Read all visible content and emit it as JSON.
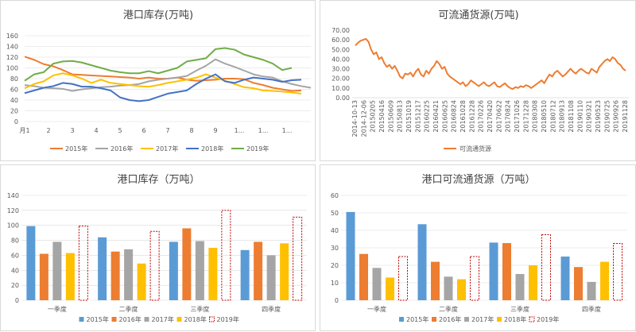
{
  "colors": {
    "y2015": "#ed7d31",
    "y2016": "#a5a5a5",
    "y2017": "#ffc000",
    "y2018": "#4472c4",
    "y2019": "#70ad47",
    "bar2015": "#5b9bd5",
    "bar2016": "#ed7d31",
    "bar2017": "#a5a5a5",
    "bar2018": "#ffc000",
    "bar2019": "#c00000",
    "flow": "#ed7d31",
    "grid": "#d9d9d9"
  },
  "chart_data": [
    {
      "type": "line",
      "title": "港口库存(万吨)",
      "yticks": [
        "0",
        "20",
        "40",
        "60",
        "80",
        "100",
        "120",
        "140",
        "160"
      ],
      "ylim": [
        0,
        160
      ],
      "xticks": [
        "月1",
        "2",
        "3",
        "4",
        "5",
        "6",
        "7",
        "8",
        "9",
        "1...",
        "1...",
        "1..."
      ],
      "xtick_positions": [
        1,
        2,
        3,
        4,
        5,
        6,
        7,
        8,
        9,
        10,
        11,
        12
      ],
      "xlim": [
        1,
        13
      ],
      "grid": true,
      "legend_position": "bottom",
      "series": [
        {
          "name": "2015年",
          "color_key": "y2015",
          "x": [
            1,
            1.4,
            1.8,
            2.2,
            2.6,
            3,
            3.4,
            3.8,
            4.2,
            4.6,
            5,
            5.4,
            5.8,
            6.2,
            6.6,
            7,
            7.4,
            7.8,
            8.2,
            8.6,
            9,
            9.4,
            9.8,
            10.2,
            10.6,
            11,
            11.4,
            11.8,
            12.2,
            12.6
          ],
          "values": [
            121,
            115,
            107,
            103,
            96,
            88,
            87,
            86,
            85,
            84,
            83,
            82,
            80,
            82,
            80,
            80,
            82,
            78,
            76,
            77,
            78,
            80,
            80,
            79,
            72,
            68,
            63,
            60,
            57,
            58
          ]
        },
        {
          "name": "2016年",
          "color_key": "y2016",
          "x": [
            1,
            1.4,
            1.8,
            2.2,
            2.6,
            3,
            3.4,
            3.8,
            4.2,
            4.6,
            5,
            5.4,
            5.8,
            6.2,
            6.6,
            7,
            7.4,
            7.8,
            8.2,
            8.6,
            9,
            9.4,
            9.8,
            10.2,
            10.6,
            11,
            11.4,
            11.8,
            12.2,
            12.6,
            13
          ],
          "values": [
            68,
            66,
            63,
            62,
            61,
            57,
            60,
            62,
            64,
            65,
            67,
            68,
            70,
            75,
            78,
            80,
            82,
            85,
            95,
            104,
            116,
            108,
            102,
            95,
            88,
            84,
            82,
            75,
            70,
            66,
            63
          ]
        },
        {
          "name": "2017年",
          "color_key": "y2017",
          "x": [
            1,
            1.4,
            1.8,
            2.2,
            2.6,
            3,
            3.4,
            3.8,
            4.2,
            4.6,
            5,
            5.4,
            5.8,
            6.2,
            6.6,
            7,
            7.4,
            7.8,
            8.2,
            8.6,
            9,
            9.4,
            9.8,
            10.2,
            10.6,
            11,
            11.4,
            11.8,
            12.2,
            12.6
          ],
          "values": [
            62,
            70,
            75,
            86,
            90,
            86,
            80,
            72,
            78,
            72,
            70,
            68,
            66,
            65,
            68,
            72,
            75,
            78,
            82,
            88,
            82,
            76,
            70,
            64,
            62,
            58,
            57,
            56,
            54,
            52
          ]
        },
        {
          "name": "2018年",
          "color_key": "y2018",
          "x": [
            1,
            1.4,
            1.8,
            2.2,
            2.6,
            3,
            3.4,
            3.8,
            4.2,
            4.6,
            5,
            5.4,
            5.8,
            6.2,
            6.6,
            7,
            7.4,
            7.8,
            8.2,
            8.6,
            9,
            9.4,
            9.8,
            10.2,
            10.6,
            11,
            11.4,
            11.8,
            12.2,
            12.6
          ],
          "values": [
            53,
            58,
            63,
            66,
            72,
            70,
            65,
            65,
            62,
            58,
            45,
            40,
            38,
            40,
            46,
            52,
            55,
            58,
            70,
            80,
            88,
            75,
            72,
            78,
            82,
            80,
            78,
            74,
            77,
            78
          ]
        },
        {
          "name": "2019年",
          "color_key": "y2019",
          "x": [
            1,
            1.4,
            1.8,
            2.2,
            2.6,
            3,
            3.4,
            3.8,
            4.2,
            4.6,
            5,
            5.4,
            5.8,
            6.2,
            6.6,
            7,
            7.4,
            7.8,
            8.2,
            8.6,
            9,
            9.4,
            9.8,
            10.2,
            10.6,
            11,
            11.4,
            11.8,
            12.2
          ],
          "values": [
            76,
            88,
            92,
            108,
            112,
            113,
            110,
            105,
            100,
            95,
            92,
            90,
            90,
            94,
            90,
            95,
            100,
            112,
            115,
            118,
            135,
            137,
            134,
            125,
            120,
            115,
            108,
            96,
            100
          ]
        }
      ]
    },
    {
      "type": "line",
      "title": "可流通货源(万吨)",
      "yticks": [
        "0.00",
        "10.00",
        "20.00",
        "30.00",
        "40.00",
        "50.00",
        "60.00",
        "70.00"
      ],
      "ylim": [
        0,
        70
      ],
      "xticks": [
        "2014-10-13",
        "2014-12-06",
        "20150205",
        "20150416",
        "20150609",
        "20150813",
        "20151019",
        "20151217",
        "20160225",
        "20160421",
        "20160625",
        "20160824",
        "20161028",
        "20161228",
        "20170226",
        "20170420",
        "20170622",
        "20170824",
        "20171026",
        "20171228",
        "20180308",
        "20180510",
        "20180712",
        "20180913",
        "20181108",
        "20190110",
        "20190321",
        "20190523",
        "20190725",
        "20190926",
        "20191128"
      ],
      "grid": true,
      "legend_position": "bottom",
      "series": [
        {
          "name": "可流通货源",
          "color_key": "flow",
          "values": [
            54,
            57,
            59,
            60,
            61,
            58,
            50,
            45,
            47,
            40,
            42,
            36,
            32,
            34,
            30,
            33,
            28,
            22,
            20,
            25,
            24,
            26,
            22,
            27,
            30,
            24,
            22,
            28,
            25,
            30,
            33,
            38,
            35,
            30,
            32,
            25,
            22,
            20,
            18,
            16,
            14,
            16,
            12,
            14,
            18,
            16,
            14,
            12,
            14,
            16,
            13,
            12,
            14,
            16,
            12,
            11,
            13,
            15,
            12,
            10,
            9,
            11,
            10,
            12,
            11,
            13,
            12,
            10,
            12,
            14,
            16,
            18,
            15,
            20,
            24,
            22,
            26,
            28,
            25,
            22,
            24,
            27,
            30,
            27,
            25,
            28,
            30,
            28,
            26,
            25,
            30,
            28,
            26,
            32,
            35,
            38,
            40,
            38,
            42,
            40,
            36,
            34,
            30,
            28
          ]
        }
      ]
    },
    {
      "type": "bar",
      "title": "港口库存（万吨）",
      "categories": [
        "一季度",
        "二季度",
        "三季度",
        "四季度"
      ],
      "yticks": [
        "0",
        "20",
        "40",
        "60",
        "80",
        "100",
        "120",
        "140"
      ],
      "ylim": [
        0,
        140
      ],
      "grid": true,
      "legend_position": "bottom",
      "series": [
        {
          "name": "2015年",
          "color_key": "bar2015",
          "values": [
            99,
            84,
            78,
            67
          ]
        },
        {
          "name": "2016年",
          "color_key": "bar2016",
          "values": [
            62,
            65,
            96,
            78
          ]
        },
        {
          "name": "2017年",
          "color_key": "bar2017",
          "values": [
            78,
            68,
            79,
            60
          ]
        },
        {
          "name": "2018年",
          "color_key": "bar2018",
          "values": [
            63,
            49,
            70,
            76
          ]
        },
        {
          "name": "2019年",
          "color_key": "bar2019",
          "dashed": true,
          "values": [
            99,
            92,
            120,
            111
          ]
        }
      ]
    },
    {
      "type": "bar",
      "title": "港口可流通货源（万吨）",
      "categories": [
        "一季度",
        "二季度",
        "三季度",
        "四季度"
      ],
      "yticks": [
        "0",
        "10",
        "20",
        "30",
        "40",
        "50",
        "60"
      ],
      "ylim": [
        0,
        60
      ],
      "grid": true,
      "legend_position": "bottom",
      "series": [
        {
          "name": "2015年",
          "color_key": "bar2015",
          "values": [
            50.5,
            43.5,
            33,
            25
          ]
        },
        {
          "name": "2016年",
          "color_key": "bar2016",
          "values": [
            26.5,
            22,
            32.7,
            19
          ]
        },
        {
          "name": "2017年",
          "color_key": "bar2017",
          "values": [
            18.5,
            13.5,
            15,
            10.5
          ]
        },
        {
          "name": "2018年",
          "color_key": "bar2018",
          "values": [
            13,
            12,
            20,
            22
          ]
        },
        {
          "name": "2019年",
          "color_key": "bar2019",
          "dashed": true,
          "values": [
            25,
            25,
            37.5,
            32.5
          ]
        }
      ]
    }
  ]
}
